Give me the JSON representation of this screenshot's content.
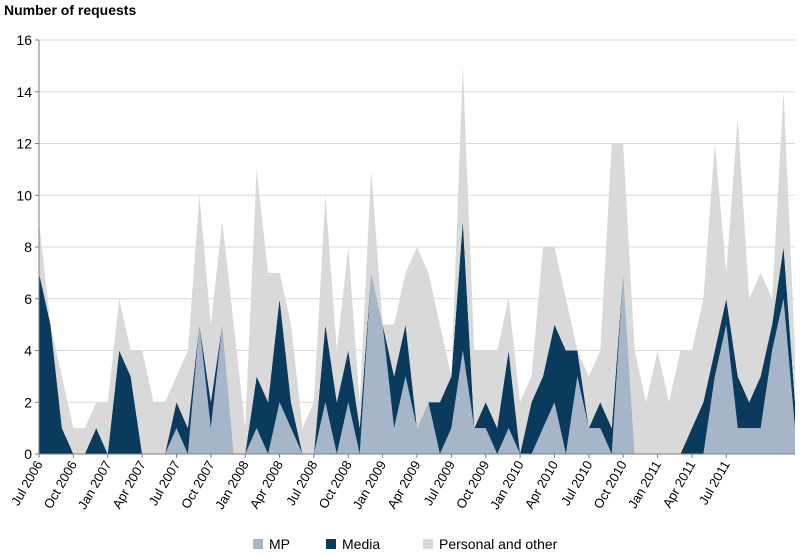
{
  "chart_data": {
    "type": "area",
    "stacked": true,
    "ylabel": "Number of requests",
    "ylim": [
      0,
      16
    ],
    "yticks": [
      0,
      2,
      4,
      6,
      8,
      10,
      12,
      14,
      16
    ],
    "grid": "horizontal",
    "tick_labels": [
      {
        "index": 0,
        "label": "Jul 2006"
      },
      {
        "index": 3,
        "label": "Oct 2006"
      },
      {
        "index": 6,
        "label": "Jan 2007"
      },
      {
        "index": 9,
        "label": "Apr 2007"
      },
      {
        "index": 12,
        "label": "Jul 2007"
      },
      {
        "index": 15,
        "label": "Oct 2007"
      },
      {
        "index": 18,
        "label": "Jan 2008"
      },
      {
        "index": 21,
        "label": "Apr 2008"
      },
      {
        "index": 24,
        "label": "Jul 2008"
      },
      {
        "index": 27,
        "label": "Oct 2008"
      },
      {
        "index": 30,
        "label": "Jan 2009"
      },
      {
        "index": 33,
        "label": "Apr 2009"
      },
      {
        "index": 36,
        "label": "Jul 2009"
      },
      {
        "index": 39,
        "label": "Oct 2009"
      },
      {
        "index": 42,
        "label": "Jan 2010"
      },
      {
        "index": 45,
        "label": "Apr 2010"
      },
      {
        "index": 48,
        "label": "Jul 2010"
      },
      {
        "index": 51,
        "label": "Oct 2010"
      },
      {
        "index": 54,
        "label": "Jan 2011"
      },
      {
        "index": 57,
        "label": "Apr 2011"
      },
      {
        "index": 60,
        "label": "Jul 2011"
      }
    ],
    "series": [
      {
        "name": "MP",
        "color": "#a7b5c9",
        "values": [
          0,
          0,
          0,
          0,
          0,
          0,
          0,
          0,
          0,
          0,
          0,
          0,
          1,
          0,
          5,
          1,
          5,
          0,
          0,
          1,
          0,
          2,
          1,
          0,
          0,
          2,
          0,
          2,
          0,
          7,
          5,
          1,
          3,
          1,
          2,
          0,
          1,
          4,
          1,
          1,
          0,
          1,
          0,
          0,
          1,
          2,
          0,
          3,
          1,
          1,
          0,
          7,
          0,
          0,
          0,
          0,
          0,
          0,
          0,
          3,
          5,
          1,
          1,
          1,
          4,
          6,
          1
        ]
      },
      {
        "name": "Media",
        "color": "#0a3a5c",
        "values": [
          7,
          5,
          1,
          0,
          0,
          1,
          0,
          4,
          3,
          0,
          0,
          0,
          1,
          1,
          0,
          1,
          0,
          0,
          0,
          2,
          2,
          4,
          1,
          0,
          0,
          3,
          2,
          2,
          1,
          0,
          0,
          2,
          2,
          0,
          0,
          2,
          2,
          5,
          0,
          1,
          1,
          3,
          0,
          2,
          2,
          3,
          4,
          1,
          0,
          1,
          1,
          0,
          0,
          0,
          0,
          0,
          0,
          1,
          2,
          1,
          1,
          2,
          1,
          2,
          1,
          2,
          1
        ]
      },
      {
        "name": "Personal and other",
        "color": "#d9d9d9",
        "values": [
          2,
          0,
          2,
          1,
          1,
          1,
          2,
          2,
          1,
          4,
          2,
          2,
          1,
          3,
          5,
          3,
          4,
          5,
          1,
          8,
          5,
          1,
          3,
          1,
          2,
          5,
          2,
          4,
          1,
          4,
          0,
          2,
          2,
          7,
          5,
          3,
          0,
          6,
          3,
          2,
          3,
          2,
          2,
          1,
          5,
          3,
          2,
          0,
          2,
          2,
          11,
          5,
          4,
          2,
          4,
          2,
          4,
          3,
          4,
          8,
          1,
          10,
          4,
          4,
          1,
          6,
          2
        ]
      }
    ]
  },
  "legend": {
    "items": [
      {
        "label": "MP",
        "color": "#a7b5c9"
      },
      {
        "label": "Media",
        "color": "#0a3a5c"
      },
      {
        "label": "Personal and other",
        "color": "#d9d9d9"
      }
    ]
  }
}
